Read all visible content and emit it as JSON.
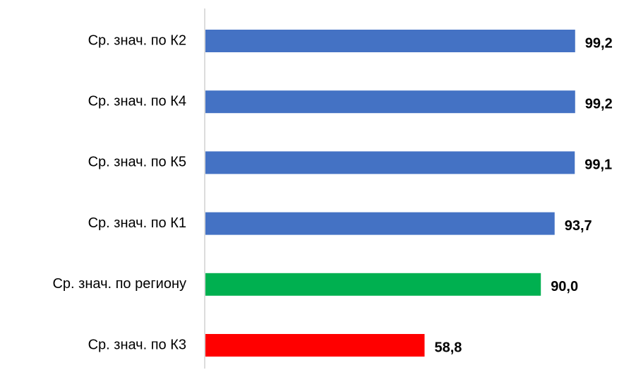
{
  "chart_data": {
    "type": "bar",
    "orientation": "horizontal",
    "categories": [
      "Ср. знач. по К2",
      "Ср. знач. по К4",
      "Ср. знач. по К5",
      "Ср. знач. по К1",
      "Ср. знач. по региону",
      "Ср. знач. по К3"
    ],
    "values": [
      99.2,
      99.2,
      99.1,
      93.7,
      90.0,
      58.8
    ],
    "value_labels": [
      "99,2",
      "99,2",
      "99,1",
      "93,7",
      "90,0",
      "58,8"
    ],
    "colors": [
      "#4472c4",
      "#4472c4",
      "#4472c4",
      "#4472c4",
      "#00b050",
      "#ff0000"
    ],
    "xlim": [
      0,
      100
    ]
  }
}
